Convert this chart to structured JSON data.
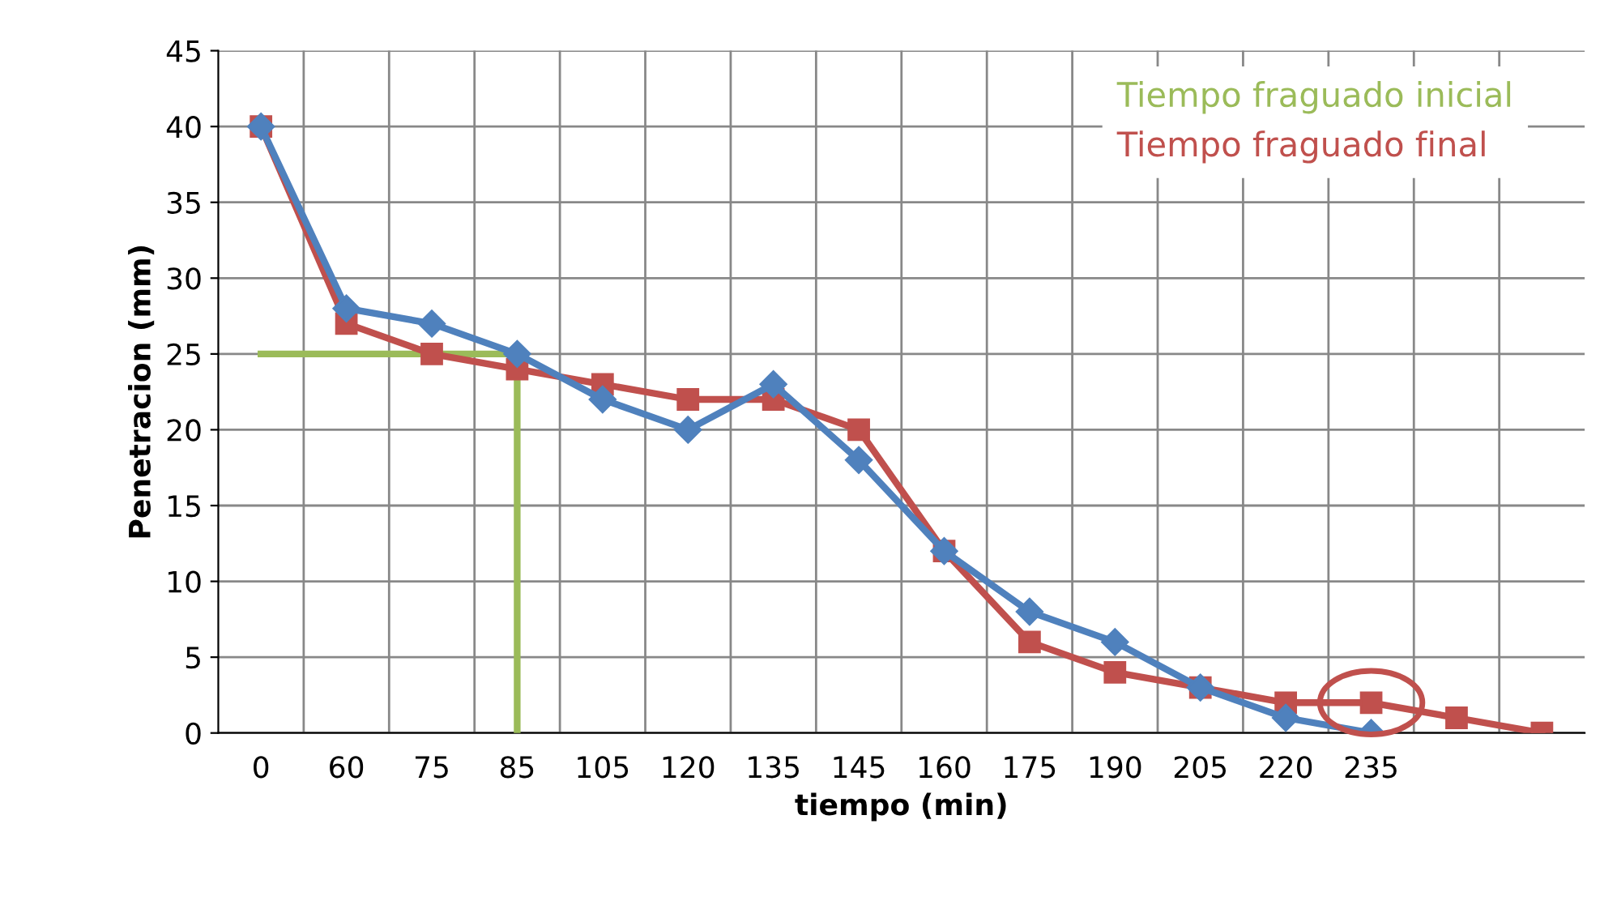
{
  "chart_data": {
    "type": "line",
    "xlabel": "tiempo (min)",
    "ylabel": "Penetracion (mm)",
    "categories": [
      "0",
      "60",
      "75",
      "85",
      "105",
      "120",
      "135",
      "145",
      "160",
      "175",
      "190",
      "205",
      "220",
      "235",
      null,
      null
    ],
    "series": [
      {
        "name": "Tiempo fraguado inicial",
        "color": "#9bbb59",
        "marker": "none",
        "x": [
          "0",
          "85",
          "85"
        ],
        "values": [
          25,
          25,
          0
        ]
      },
      {
        "name": "Tiempo fraguado final",
        "color": "#c0504d",
        "marker": "square",
        "values": [
          40,
          27,
          25,
          24,
          23,
          22,
          22,
          20,
          12,
          6,
          4,
          3,
          2,
          2,
          1,
          0
        ]
      },
      {
        "color": "#4f81bd",
        "marker": "diamond",
        "values": [
          40,
          28,
          27,
          25,
          22,
          20,
          23,
          18,
          12,
          8,
          6,
          3,
          1,
          0,
          null,
          null
        ]
      }
    ],
    "ylim": [
      0,
      45
    ],
    "yticks": [
      0,
      5,
      10,
      15,
      20,
      25,
      30,
      35,
      40,
      45
    ],
    "grid": true,
    "legend": "top right"
  }
}
